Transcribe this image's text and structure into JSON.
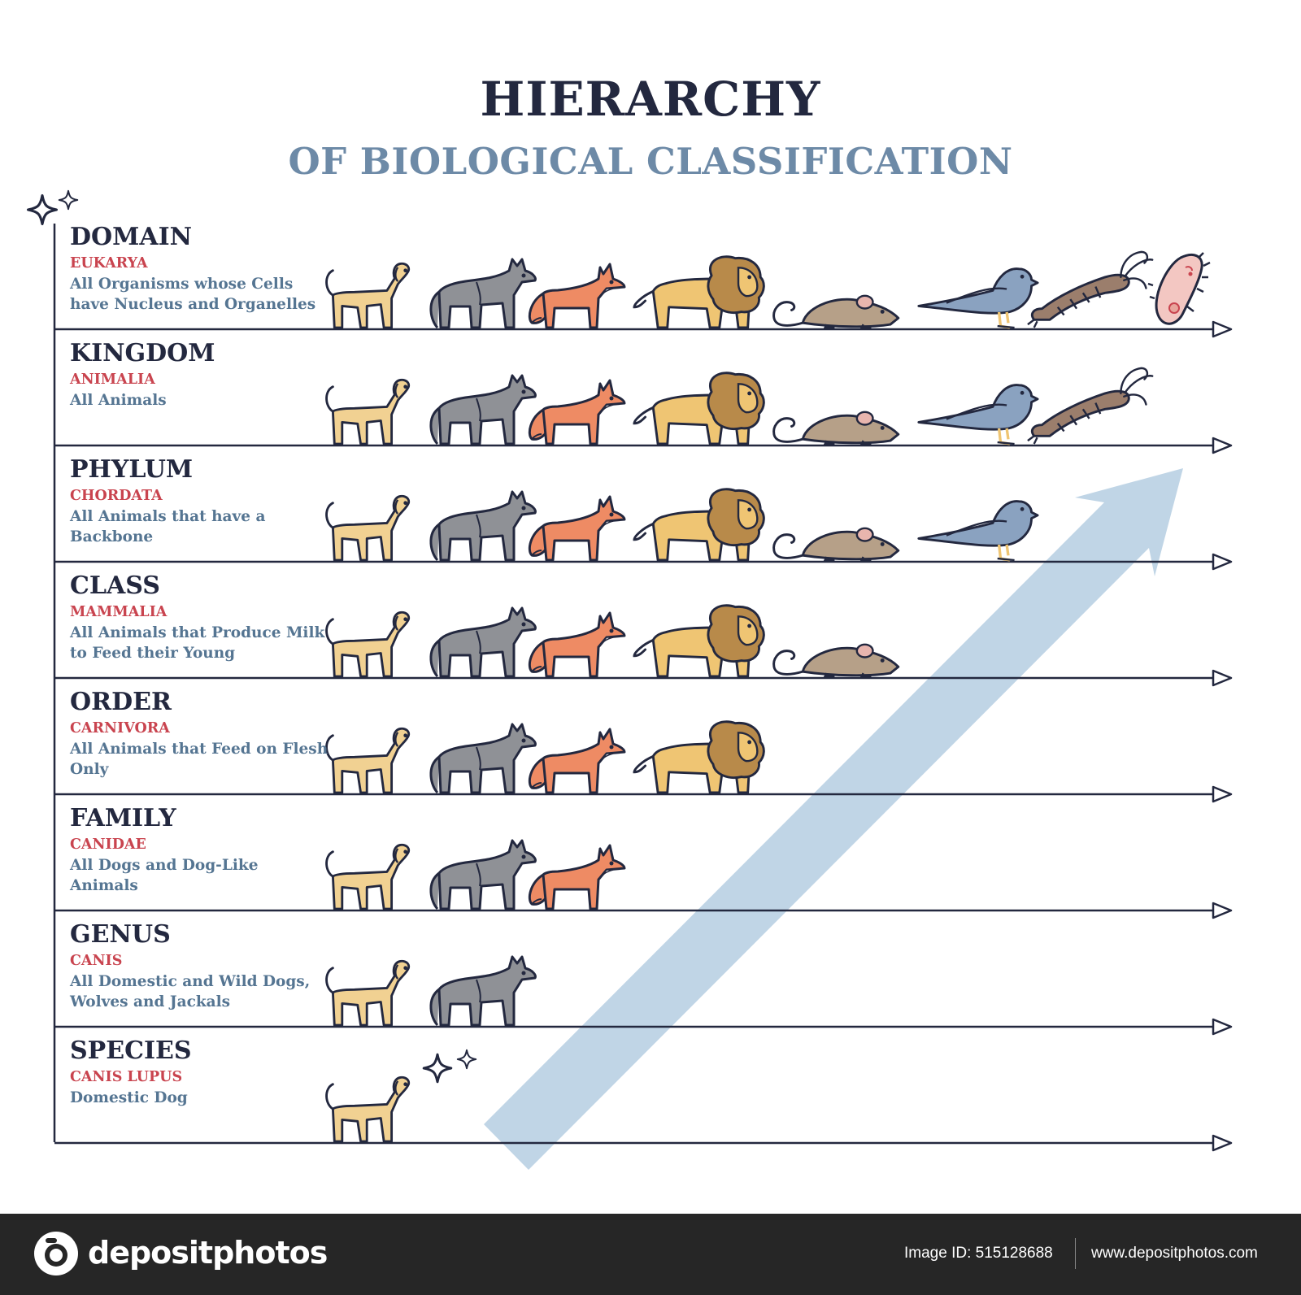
{
  "title": "HIERARCHY",
  "subtitle": "OF BIOLOGICAL CLASSIFICATION",
  "colors": {
    "dark_navy": "#23283f",
    "slate_blue": "#6d8aa7",
    "taxon_red": "#c9444f",
    "desc_blue": "#557592",
    "arrow_fill": "#bdd3e5",
    "footer_bg": "#262626"
  },
  "ranks": [
    {
      "name": "DOMAIN",
      "taxon": "EUKARYA",
      "description": "All Organisms whose Cells have Nucleus and Organelles",
      "organisms": [
        "dog-icon",
        "wolf-icon",
        "fox-icon",
        "lion-icon",
        "mouse-icon",
        "bird-icon",
        "shrimp-icon",
        "bacterium-icon"
      ]
    },
    {
      "name": "KINGDOM",
      "taxon": "ANIMALIA",
      "description": "All Animals",
      "organisms": [
        "dog-icon",
        "wolf-icon",
        "fox-icon",
        "lion-icon",
        "mouse-icon",
        "bird-icon",
        "shrimp-icon"
      ]
    },
    {
      "name": "PHYLUM",
      "taxon": "CHORDATA",
      "description": "All Animals that have a Backbone",
      "organisms": [
        "dog-icon",
        "wolf-icon",
        "fox-icon",
        "lion-icon",
        "mouse-icon",
        "bird-icon"
      ]
    },
    {
      "name": "CLASS",
      "taxon": "MAMMALIA",
      "description": "All Animals that Produce Milk to Feed their Young",
      "organisms": [
        "dog-icon",
        "wolf-icon",
        "fox-icon",
        "lion-icon",
        "mouse-icon"
      ]
    },
    {
      "name": "ORDER",
      "taxon": "CARNIVORA",
      "description": "All Animals that Feed on Flesh Only",
      "organisms": [
        "dog-icon",
        "wolf-icon",
        "fox-icon",
        "lion-icon"
      ]
    },
    {
      "name": "FAMILY",
      "taxon": "CANIDAE",
      "description": "All Dogs and Dog-Like Animals",
      "organisms": [
        "dog-icon",
        "wolf-icon",
        "fox-icon"
      ]
    },
    {
      "name": "GENUS",
      "taxon": "CANIS",
      "description": "All Domestic and Wild Dogs, Wolves and Jackals",
      "organisms": [
        "dog-icon",
        "wolf-icon"
      ]
    },
    {
      "name": "SPECIES",
      "taxon": "CANIS LUPUS",
      "description": "Domestic Dog",
      "organisms": [
        "dog-icon"
      ]
    }
  ],
  "decorations": [
    "sparkle-icon",
    "big-diagonal-arrow"
  ],
  "footer": {
    "brand": "depositphotos",
    "image_id": "Image ID: 515128688",
    "site": "www.depositphotos.com"
  }
}
